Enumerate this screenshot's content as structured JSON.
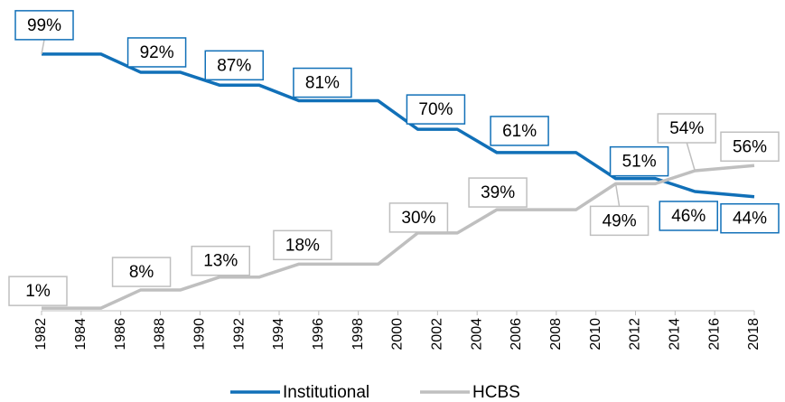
{
  "chart_data": {
    "type": "line",
    "x": [
      1982,
      1985,
      1987,
      1989,
      1991,
      1993,
      1995,
      1999,
      2001,
      2003,
      2005,
      2009,
      2011,
      2013,
      2015,
      2018
    ],
    "series": [
      {
        "name": "Institutional",
        "color": "#1170b8",
        "values": [
          99,
          99,
          92,
          92,
          87,
          87,
          81,
          81,
          70,
          70,
          61,
          61,
          51,
          51,
          46,
          44
        ],
        "value_labels": [
          "99%",
          null,
          "92%",
          null,
          "87%",
          null,
          "81%",
          null,
          "70%",
          null,
          "61%",
          null,
          "51%",
          null,
          "46%",
          "44%"
        ]
      },
      {
        "name": "HCBS",
        "color": "#bfbfbf",
        "values": [
          1,
          1,
          8,
          8,
          13,
          13,
          18,
          18,
          30,
          30,
          39,
          39,
          49,
          49,
          54,
          56
        ],
        "value_labels": [
          "1%",
          null,
          "8%",
          null,
          "13%",
          null,
          "18%",
          null,
          "30%",
          null,
          "39%",
          null,
          "49%",
          null,
          "54%",
          "56%"
        ]
      }
    ],
    "xlim": [
      1982,
      2018
    ],
    "xticks": [
      1982,
      1984,
      1986,
      1988,
      1990,
      1992,
      1994,
      1996,
      1998,
      2000,
      2002,
      2004,
      2006,
      2008,
      2010,
      2012,
      2014,
      2016,
      2018
    ],
    "ylim": [
      0,
      100
    ],
    "legend": "bottom"
  }
}
